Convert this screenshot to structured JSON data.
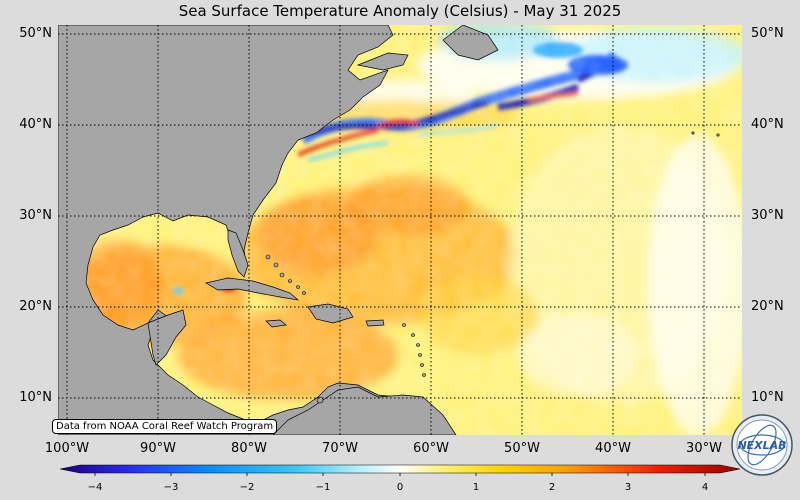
{
  "title": "Sea Surface Temperature Anomaly (Celsius) - May 31 2025",
  "latitudes": [
    {
      "label": "50°N",
      "value": 50
    },
    {
      "label": "40°N",
      "value": 40
    },
    {
      "label": "30°N",
      "value": 30
    },
    {
      "label": "20°N",
      "value": 20
    },
    {
      "label": "10°N",
      "value": 10
    }
  ],
  "longitudes": [
    {
      "label": "100°W",
      "value": -100
    },
    {
      "label": "90°W",
      "value": -90
    },
    {
      "label": "80°W",
      "value": -80
    },
    {
      "label": "70°W",
      "value": -70
    },
    {
      "label": "60°W",
      "value": -60
    },
    {
      "label": "50°W",
      "value": -50
    },
    {
      "label": "40°W",
      "value": -40
    },
    {
      "label": "30°W",
      "value": -30
    }
  ],
  "map_extent": {
    "lon_min": -100,
    "lon_max": -25,
    "lat_min": 6,
    "lat_max": 51
  },
  "credit": "Data from NOAA Coral Reef Watch Program",
  "colorbar": {
    "min": -4,
    "max": 4,
    "ticks": [
      "−4",
      "−3",
      "−2",
      "−1",
      "0",
      "1",
      "2",
      "3",
      "4"
    ],
    "colors": [
      "#1a0078",
      "#2a2af0",
      "#0a8cff",
      "#3cc8ff",
      "#b4f0ff",
      "#ffffff",
      "#ffee00",
      "#ffbe1e",
      "#ff7800",
      "#f01e00",
      "#9e0000"
    ]
  },
  "land_color": "#a6a6a6",
  "logo": {
    "text": "NEXLAB"
  }
}
